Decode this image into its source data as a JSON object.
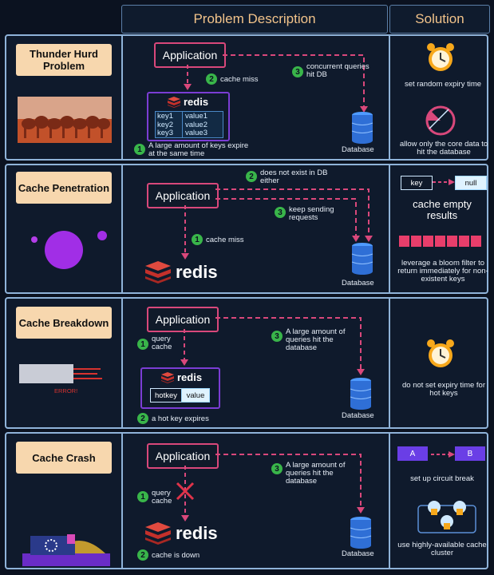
{
  "headers": {
    "problem": "Problem Description",
    "solution": "Solution"
  },
  "common": {
    "application": "Application",
    "database": "Database",
    "redis": "redis"
  },
  "rows": [
    {
      "title": "Thunder Hurd Problem",
      "steps": {
        "s1": "1",
        "s1_text": "A large amount of keys expire at the same time",
        "s2": "2",
        "s2_text": "cache miss",
        "s3": "3",
        "s3_text": "concurrent queries hit DB"
      },
      "kv": {
        "keys": [
          "key1",
          "key2",
          "key3"
        ],
        "values": [
          "value1",
          "value2",
          "value3"
        ]
      },
      "solution": [
        "set random expiry time",
        "allow only the core data to hit the database"
      ]
    },
    {
      "title": "Cache Penetration",
      "steps": {
        "s1": "1",
        "s1_text": "cache miss",
        "s2": "2",
        "s2_text": "does not exist in DB either",
        "s3": "3",
        "s3_text": "keep sending requests"
      },
      "solution": {
        "key": "key",
        "null": "null",
        "big": "cache empty results",
        "bloom": "leverage a bloom filter to return immediately for non-existent keys"
      }
    },
    {
      "title": "Cache Breakdown",
      "steps": {
        "s1": "1",
        "s1_text": "query cache",
        "s2": "2",
        "s2_text": "a hot key expires",
        "s3": "3",
        "s3_text": "A large amount of queries hit the database"
      },
      "kv": {
        "key": "hotkey",
        "value": "value"
      },
      "error": "ERROR!",
      "solution": [
        "do not set expiry time for hot keys"
      ]
    },
    {
      "title": "Cache Crash",
      "steps": {
        "s1": "1",
        "s1_text": "query cache",
        "s2": "2",
        "s2_text": "cache is down",
        "s3": "3",
        "s3_text": "A large amount of queries hit the database"
      },
      "solution": {
        "a": "A",
        "b": "B",
        "circuit": "set up circuit break",
        "cluster": "use highly-available cache cluster"
      }
    }
  ],
  "colors": {
    "pink": "#d9487b",
    "green": "#39b54a",
    "blue": "#2f6fd6",
    "purple": "#7b3dd4",
    "redis_red": "#d6332f"
  }
}
